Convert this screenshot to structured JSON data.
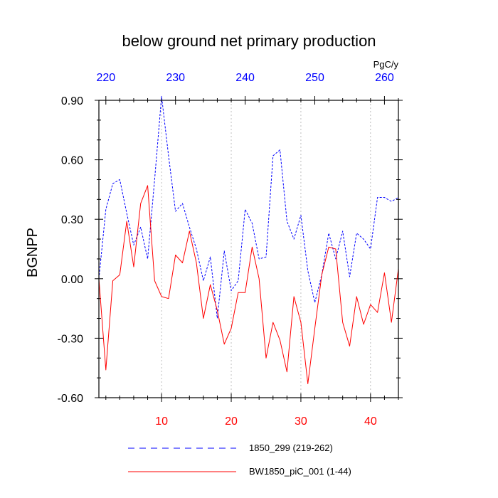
{
  "chart_data": {
    "type": "line",
    "title": "below ground net primary production",
    "units": "PgC/y",
    "ylabel": "BGNPP",
    "ylim": [
      -0.6,
      0.9
    ],
    "yticks": [
      -0.6,
      -0.3,
      0.0,
      0.3,
      0.6,
      0.9
    ],
    "ytick_labels": [
      "-0.60",
      "-0.30",
      "0.00",
      "0.30",
      "0.60",
      "0.90"
    ],
    "xlim_bottom": [
      1,
      44
    ],
    "xticks_bottom": [
      10,
      20,
      30,
      40
    ],
    "xtick_labels_bottom": [
      "10",
      "20",
      "30",
      "40"
    ],
    "xlim_top": [
      219,
      262
    ],
    "xticks_top": [
      220,
      230,
      240,
      250,
      260
    ],
    "xtick_labels_top": [
      "220",
      "230",
      "240",
      "250",
      "260"
    ],
    "grid": "vertical dotted",
    "legend_position": "below",
    "colors": {
      "top_axis_labels": "#0000ff",
      "bottom_axis_labels": "#ff0000",
      "series_1850_299": "#0000ff",
      "series_BW1850": "#ff0000"
    },
    "series": [
      {
        "name": "1850_299 (219-262)",
        "style": "dashed",
        "axis": "top",
        "x": [
          219,
          220,
          221,
          222,
          223,
          224,
          225,
          226,
          227,
          228,
          229,
          230,
          231,
          232,
          233,
          234,
          235,
          236,
          237,
          238,
          239,
          240,
          241,
          242,
          243,
          244,
          245,
          246,
          247,
          248,
          249,
          250,
          251,
          252,
          253,
          254,
          255,
          256,
          257,
          258,
          259,
          260,
          261,
          262
        ],
        "values": [
          0.0,
          0.35,
          0.48,
          0.5,
          0.33,
          0.17,
          0.26,
          0.1,
          0.5,
          0.92,
          0.62,
          0.34,
          0.38,
          0.26,
          0.15,
          -0.01,
          0.11,
          -0.2,
          0.14,
          -0.06,
          -0.01,
          0.35,
          0.28,
          0.1,
          0.11,
          0.62,
          0.65,
          0.29,
          0.2,
          0.32,
          0.04,
          -0.12,
          0.02,
          0.23,
          0.1,
          0.24,
          0.01,
          0.23,
          0.2,
          0.15,
          0.41,
          0.41,
          0.39,
          0.41
        ]
      },
      {
        "name": "BW1850_piC_001 (1-44)",
        "style": "solid",
        "axis": "bottom",
        "x": [
          1,
          2,
          3,
          4,
          5,
          6,
          7,
          8,
          9,
          10,
          11,
          12,
          13,
          14,
          15,
          16,
          17,
          18,
          19,
          20,
          21,
          22,
          23,
          24,
          25,
          26,
          27,
          28,
          29,
          30,
          31,
          32,
          33,
          34,
          35,
          36,
          37,
          38,
          39,
          40,
          41,
          42,
          43,
          44
        ],
        "values": [
          0.0,
          -0.46,
          -0.01,
          0.02,
          0.29,
          0.06,
          0.38,
          0.47,
          -0.01,
          -0.09,
          -0.1,
          0.12,
          0.08,
          0.24,
          0.08,
          -0.2,
          -0.03,
          -0.16,
          -0.33,
          -0.25,
          -0.07,
          -0.07,
          0.16,
          0.0,
          -0.4,
          -0.22,
          -0.31,
          -0.47,
          -0.09,
          -0.22,
          -0.53,
          -0.25,
          0.02,
          0.16,
          0.15,
          -0.22,
          -0.34,
          -0.09,
          -0.23,
          -0.13,
          -0.17,
          0.03,
          -0.22,
          0.05
        ]
      }
    ]
  }
}
